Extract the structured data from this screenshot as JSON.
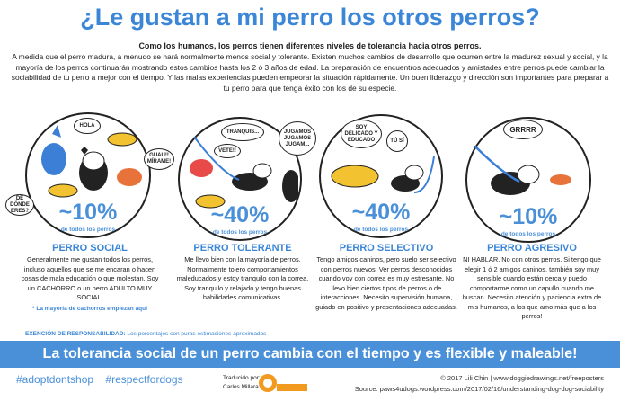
{
  "title": "¿Le gustan a mi perro los otros perros?",
  "lead": "Como los humanos, los perros tienen diferentes niveles de tolerancia hacia otros perros.",
  "intro": "A medida que el perro madura, a menudo se hará normalmente menos social y tolerante. Existen muchos cambios de desarrollo que ocurren entre la madurez sexual y social, y la mayoría de los perros continuarán mostrando estos cambios hasta los 2 ó 3 años de edad. La preparación de encuentros adecuados y amistades entre perros puede cambiar la sociabilidad de tu perro a mejor con el tiempo. Y las malas experiencias pueden empeorar la situación rápidamente. Un buen liderazgo y dirección son importantes para preparar a tu perro para que tenga éxito con los de su especie.",
  "types": [
    {
      "percent": "~10%",
      "sub": "de todos los perros",
      "title": "PERRO SOCIAL",
      "text": "Generalmente me gustan todos los perros, incluso aquellos que se me encaran o hacen cosas de mala educación o que molestan. Soy un CACHORRO o un perro ADULTO MUY SOCIAL.",
      "note": "* La mayoría de cachorros empiezan aquí",
      "bubbles": [
        "HOLA",
        "GUAU!! MÍRAME!",
        "DE DÓNDE ERES?"
      ]
    },
    {
      "percent": "~40%",
      "sub": "de todos los perros",
      "title": "PERRO TOLERANTE",
      "text": "Me llevo bien con la mayoría de perros. Normalmente tolero comportamientos maleducados y estoy tranquilo con la correa. Soy tranquilo y relajado y tengo buenas habilidades comunicativas.",
      "bubbles": [
        "TRANQUIS...",
        "VETE!!",
        "JUGAMOS JUGAMOS JUGAM..."
      ]
    },
    {
      "percent": "~40%",
      "sub": "de todos los perros",
      "title": "PERRO SELECTIVO",
      "text": "Tengo amigos caninos, pero suelo ser selectivo con perros nuevos. Ver perros desconocidos cuando voy con correa es muy estresante. No llevo bien ciertos tipos de perros o de interacciones. Necesito supervisión humana, guiado en positivo y presentaciones adecuadas.",
      "bubbles": [
        "SOY DELICADO Y EDUCADO",
        "TÚ SÍ"
      ]
    },
    {
      "percent": "~10%",
      "sub": "de todos los perros",
      "title": "PERRO AGRESIVO",
      "text": "NI HABLAR. No con otros perros. Si tengo que elegir 1 ó 2 amigos caninos, también soy muy sensible cuando están cerca y puedo comportarme como un capullo cuando me buscan. Necesito atención y paciencia extra de mis humanos, a los que amo más que a los perros!",
      "bubbles": [
        "GRRRR"
      ]
    }
  ],
  "disclaimer": {
    "label": "EXENCIÓN DE RESPONSABILIDAD:",
    "text": " Los porcentajes son puras estimaciones aproximadas"
  },
  "banner": "La tolerancia social de un perro cambia con el tiempo y es flexible y maleable!",
  "hashtags": [
    "#adoptdontshop",
    "#respectfordogs"
  ],
  "translator": {
    "label": "Traducido por:",
    "name": "Carlos Millara",
    "logo": "CANNICOS"
  },
  "credit": "© 2017 Lili Chin  |  www.doggiedrawings.net/freeposters",
  "source": "Source: paws4udogs.wordpress.com/2017/02/16/understanding-dog-dog-sociability",
  "colors": {
    "blue": "#4a90d9",
    "title": "#3b86d6",
    "yellow": "#f2c230",
    "orange": "#e8733a",
    "red": "#e84a4a"
  }
}
